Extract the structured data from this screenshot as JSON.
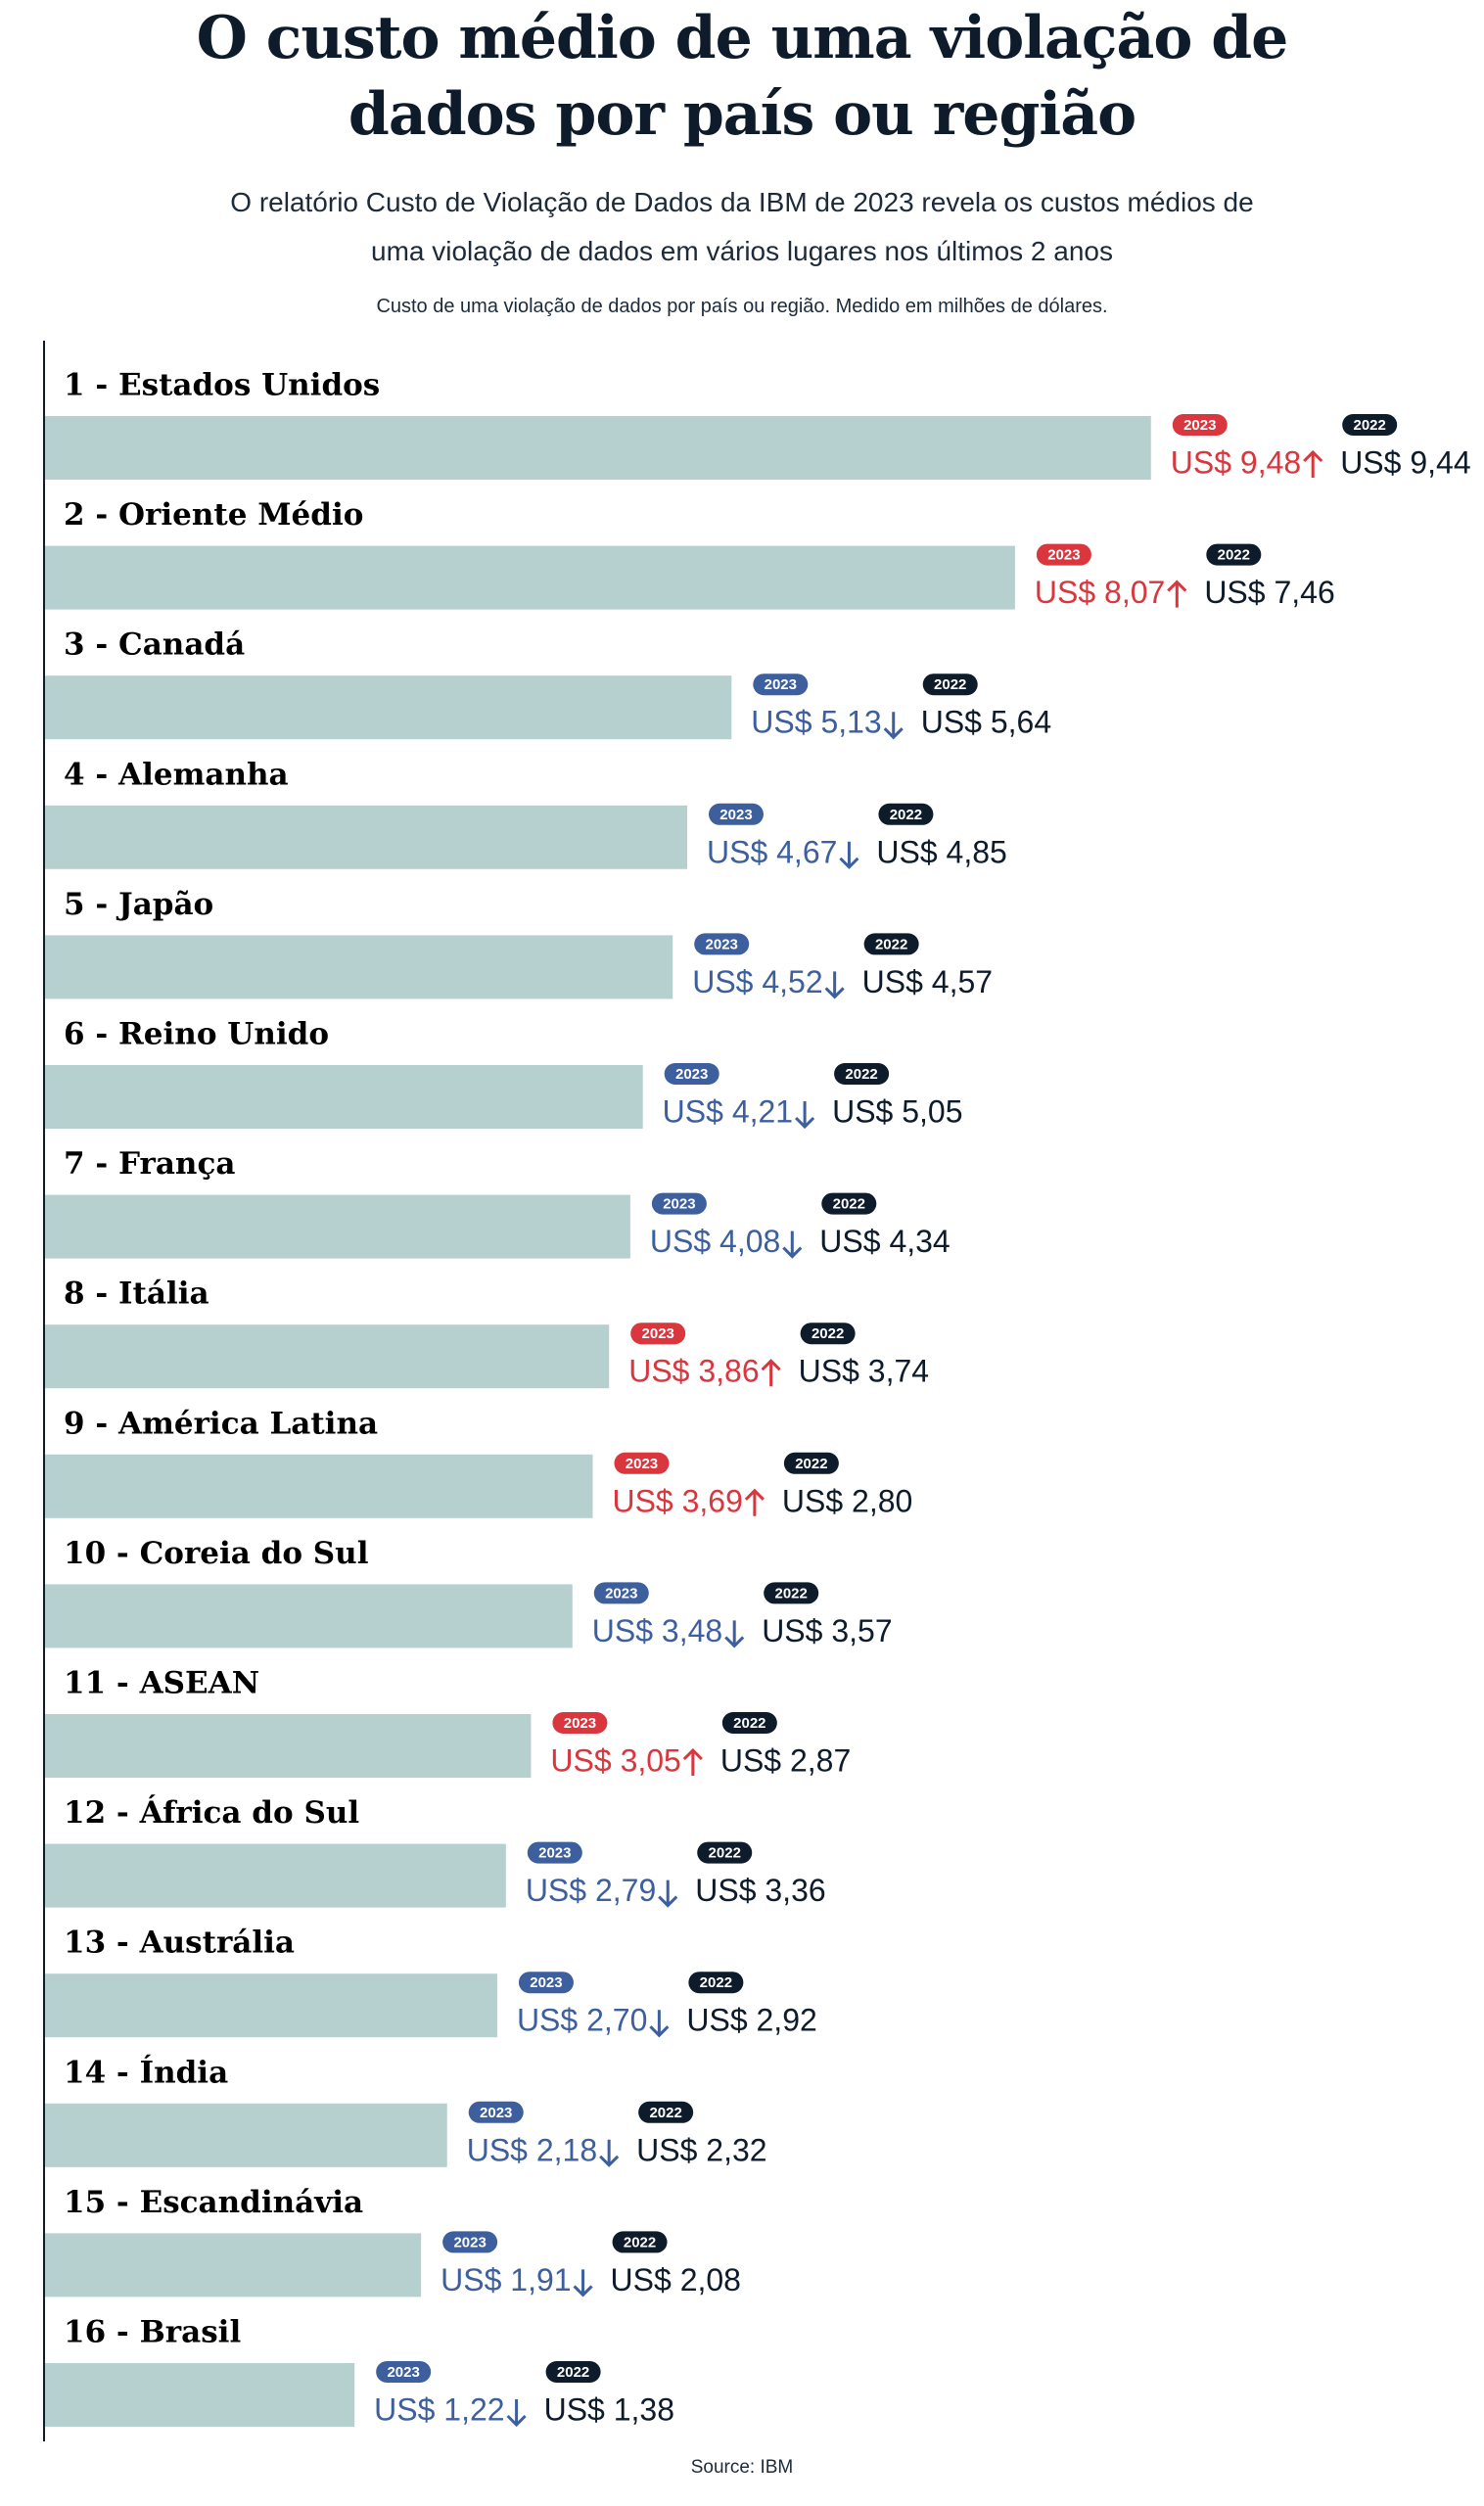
{
  "chart_data": {
    "type": "bar",
    "title": "O custo médio de uma violação de dados por país ou região",
    "subtitle": "O relatório Custo de Violação de Dados da IBM de 2023 revela os custos médios de uma violação de dados em vários lugares nos últimos 2 anos",
    "note": "Custo de uma violação de dados por país ou região. Medido em milhões de dólares.",
    "source": "Source: IBM",
    "categories": [
      "1 - Estados Unidos",
      "2 - Oriente Médio",
      "3 - Canadá",
      "4 - Alemanha",
      "5 - Japão",
      "6 - Reino Unido",
      "7 - França",
      "8 - Itália",
      "9 - América Latina",
      "10 - Coreia do Sul",
      "11 - ASEAN",
      "12 - África do Sul",
      "13 - Austrália",
      "14 - Índia",
      "15 - Escandinávia",
      "16 - Brasil"
    ],
    "series": [
      {
        "name": "2023",
        "color": "#b5d0cf",
        "up_color": "#d9363e",
        "down_color": "#3d5f9e",
        "values": [
          9.48,
          8.07,
          5.13,
          4.67,
          4.52,
          4.21,
          4.08,
          3.86,
          3.69,
          3.48,
          3.05,
          2.79,
          2.7,
          2.18,
          1.91,
          1.22
        ],
        "value_labels": [
          "US$ 9,48",
          "US$ 8,07",
          "US$ 5,13",
          "US$ 4,67",
          "US$ 4,52",
          "US$ 4,21",
          "US$ 4,08",
          "US$ 3,86",
          "US$ 3,69",
          "US$ 3,48",
          "US$ 3,05",
          "US$ 2,79",
          "US$ 2,70",
          "US$ 2,18",
          "US$ 1,91",
          "US$ 1,22"
        ]
      },
      {
        "name": "2022",
        "color": "#0d1b2a",
        "values": [
          9.44,
          7.46,
          5.64,
          4.85,
          4.57,
          5.05,
          4.34,
          3.74,
          2.8,
          3.57,
          2.87,
          3.36,
          2.92,
          2.32,
          2.08,
          1.38
        ],
        "value_labels": [
          "US$ 9,44",
          "US$ 7,46",
          "US$ 5,64",
          "US$ 4,85",
          "US$ 4,57",
          "US$ 5,05",
          "US$ 4,34",
          "US$ 3,74",
          "US$ 2,80",
          "US$ 3,57",
          "US$ 2,87",
          "US$ 3,36",
          "US$ 2,92",
          "US$ 2,32",
          "US$ 2,08",
          "US$ 1,38"
        ]
      }
    ],
    "xlim": [
      -2,
      10
    ]
  }
}
